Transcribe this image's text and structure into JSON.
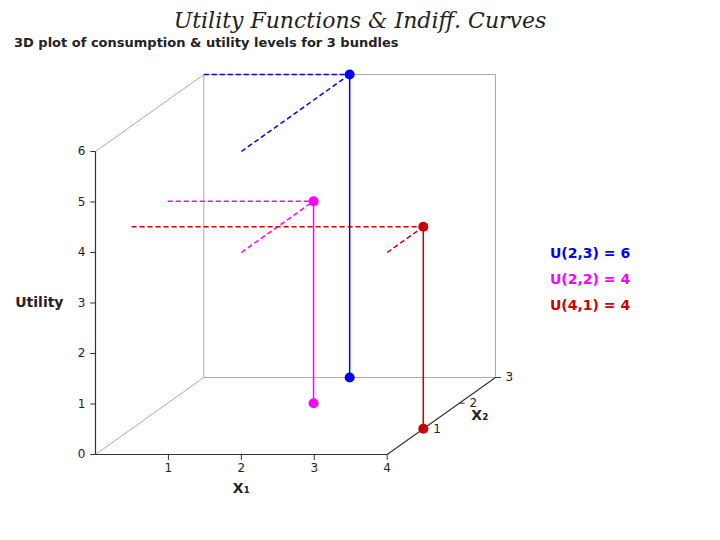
{
  "chart_data": {
    "type": "scatter3d",
    "title": "Utility Functions & Indiff. Curves",
    "subtitle": "3D plot of consumption & utility levels for 3 bundles",
    "xlabel": "X₁",
    "ylabel": "X₂",
    "zlabel": "Utility",
    "xlim": [
      0,
      4
    ],
    "ylim": [
      0,
      3
    ],
    "zlim": [
      0,
      6
    ],
    "xticks": [
      1,
      2,
      3,
      4
    ],
    "yticks": [
      1,
      2,
      3
    ],
    "zticks": [
      0,
      1,
      2,
      3,
      4,
      5,
      6
    ],
    "grid": false,
    "legend": "right",
    "series": [
      {
        "name": "U(2,3) = 6",
        "color": "#0000EE",
        "x": [
          2
        ],
        "y": [
          3
        ],
        "z": [
          6
        ]
      },
      {
        "name": "U(2,2) = 4",
        "color": "#FF00FF",
        "x": [
          2
        ],
        "y": [
          2
        ],
        "z": [
          4
        ]
      },
      {
        "name": "U(4,1) = 4",
        "color": "#CC0000",
        "x": [
          4
        ],
        "y": [
          1
        ],
        "z": [
          4
        ]
      }
    ]
  }
}
